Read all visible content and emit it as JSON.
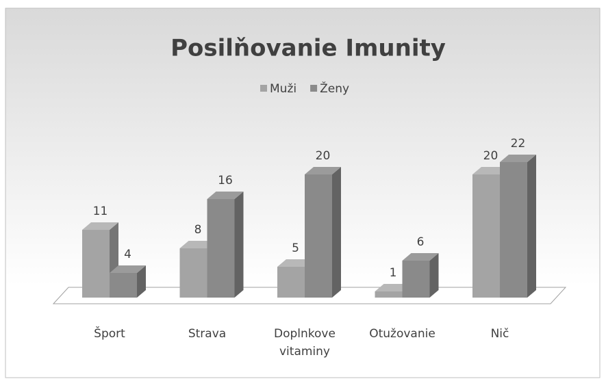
{
  "chart_data": {
    "type": "bar3d",
    "title": "Posilňovanie Imunity",
    "categories": [
      "Šport",
      "Strava",
      "Doplnkove vitaminy",
      "Otužovanie",
      "Nič"
    ],
    "series": [
      {
        "name": "Muži",
        "color": "#a4a4a4",
        "values": [
          11,
          8,
          5,
          1,
          20
        ]
      },
      {
        "name": "Ženy",
        "color": "#8a8a8a",
        "values": [
          4,
          16,
          20,
          6,
          22
        ]
      }
    ],
    "legend": "top"
  }
}
